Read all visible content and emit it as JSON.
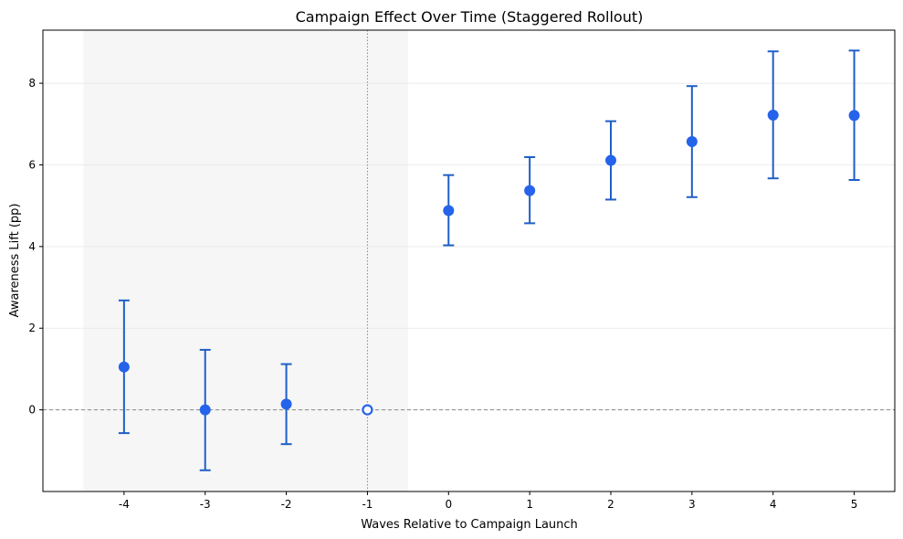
{
  "chart_data": {
    "type": "scatter",
    "title": "Campaign Effect Over Time (Staggered Rollout)",
    "xlabel": "Waves Relative to Campaign Launch",
    "ylabel": "Awareness Lift (pp)",
    "x_ticks": [
      -4,
      -3,
      -2,
      -1,
      0,
      1,
      2,
      3,
      4,
      5
    ],
    "y_ticks": [
      0,
      2,
      4,
      6,
      8
    ],
    "xlim": [
      -5,
      5.5
    ],
    "ylim": [
      -2,
      9.3
    ],
    "grid": "horizontal",
    "reference_period": -1,
    "pre_period_shaded": [
      -4.5,
      -0.5
    ],
    "zero_line": true,
    "colors": {
      "series": "#2563eb",
      "errorbar": "#1f5fc7",
      "shade": "#f0f0f0",
      "refline": "#888888"
    },
    "series": [
      {
        "x": [
          -4,
          -3,
          -2,
          -1,
          0,
          1,
          2,
          3,
          4,
          5
        ],
        "y": [
          1.05,
          0.0,
          0.14,
          0.0,
          4.88,
          5.37,
          6.11,
          6.57,
          7.22,
          7.21
        ],
        "lower": [
          -0.57,
          -1.48,
          -0.84,
          0.0,
          4.03,
          4.57,
          5.15,
          5.21,
          5.67,
          5.63
        ],
        "upper": [
          2.68,
          1.47,
          1.12,
          0.0,
          5.75,
          6.19,
          7.07,
          7.93,
          8.78,
          8.8
        ],
        "hollow": [
          false,
          false,
          false,
          true,
          false,
          false,
          false,
          false,
          false,
          false
        ]
      }
    ]
  }
}
